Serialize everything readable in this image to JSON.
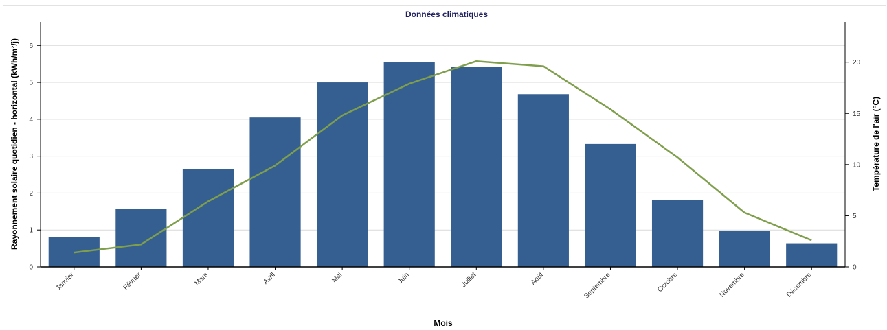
{
  "chart_data": {
    "type": "bar",
    "title": "Données climatiques",
    "xlabel": "Mois",
    "ylabel_left": "Rayonnement solaire quotidien - horizontal (kWh/m²/j)",
    "ylabel_right": "Température de l'air (°C)",
    "categories": [
      "Janvier",
      "Février",
      "Mars",
      "Avril",
      "Mai",
      "Juin",
      "Juillet",
      "Août",
      "Septembre",
      "Octobre",
      "Novembre",
      "Décembre"
    ],
    "series": [
      {
        "axis": "left",
        "kind": "bar",
        "values": [
          0.8,
          1.57,
          2.64,
          4.05,
          5.0,
          5.54,
          5.42,
          4.68,
          3.33,
          1.81,
          0.97,
          0.64
        ]
      },
      {
        "axis": "right",
        "kind": "line",
        "values": [
          1.4,
          2.2,
          6.4,
          9.9,
          14.8,
          17.9,
          20.1,
          19.6,
          15.4,
          10.7,
          5.3,
          2.6
        ]
      }
    ],
    "ylim_left": [
      0,
      6.6
    ],
    "yticks_left": [
      0,
      1,
      2,
      3,
      4,
      5,
      6
    ],
    "ylim_right": [
      0,
      23.8
    ],
    "yticks_right": [
      0,
      5,
      10,
      15,
      20
    ],
    "grid": true,
    "colors": {
      "bar": "#355f91",
      "line": "#7f9f4c",
      "grid": "#d9d9d9",
      "title": "#1f1f5f",
      "month_label": "#1f3f7a"
    }
  }
}
